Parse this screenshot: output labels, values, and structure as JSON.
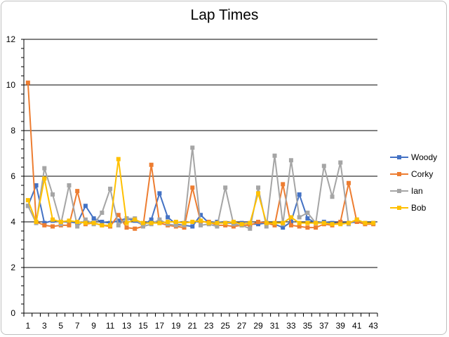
{
  "chart_data": {
    "type": "line",
    "title": "Lap Times",
    "xlabel": "",
    "ylabel": "",
    "ylim": [
      0,
      12
    ],
    "yticks": [
      0,
      2,
      4,
      6,
      8,
      10,
      12
    ],
    "xlim": [
      1,
      43
    ],
    "xtick_labels": [
      1,
      3,
      5,
      7,
      9,
      11,
      13,
      15,
      17,
      19,
      21,
      23,
      25,
      27,
      29,
      31,
      33,
      35,
      37,
      39,
      41,
      43
    ],
    "grid": "horizontal",
    "legend_position": "right",
    "x": [
      1,
      2,
      3,
      4,
      5,
      6,
      7,
      8,
      9,
      10,
      11,
      12,
      13,
      14,
      15,
      16,
      17,
      18,
      19,
      20,
      21,
      22,
      23,
      24,
      25,
      26,
      27,
      28,
      29,
      30,
      31,
      32,
      33,
      34,
      35,
      36,
      37,
      38,
      39,
      40,
      41,
      42,
      43
    ],
    "series": [
      {
        "name": "Woody",
        "color": "#4472c4",
        "marker": "square",
        "values": [
          4.7,
          5.6,
          3.95,
          4.05,
          4.0,
          4.0,
          3.95,
          4.7,
          4.15,
          4.0,
          3.95,
          4.05,
          4.15,
          4.05,
          3.85,
          4.1,
          5.25,
          4.2,
          3.9,
          3.85,
          3.8,
          4.3,
          3.95,
          4.0,
          3.95,
          3.95,
          3.95,
          3.9,
          3.9,
          3.95,
          3.9,
          3.75,
          4.0,
          5.2,
          4.15,
          3.95,
          4.0,
          3.95,
          3.95,
          3.95,
          4.0,
          3.95,
          3.95
        ]
      },
      {
        "name": "Corky",
        "color": "#ed7d31",
        "marker": "square",
        "values": [
          10.1,
          4.0,
          3.85,
          3.8,
          3.85,
          3.85,
          5.35,
          3.9,
          3.95,
          3.85,
          3.8,
          4.3,
          3.75,
          3.7,
          3.8,
          6.5,
          3.95,
          3.85,
          3.8,
          3.75,
          5.5,
          4.0,
          4.0,
          3.85,
          3.85,
          3.8,
          3.85,
          3.85,
          4.0,
          3.95,
          3.85,
          5.65,
          3.85,
          3.8,
          3.75,
          3.75,
          3.9,
          3.85,
          4.0,
          5.7,
          4.0,
          3.9,
          3.9
        ]
      },
      {
        "name": "Ian",
        "color": "#a5a5a5",
        "marker": "square",
        "values": [
          4.7,
          3.95,
          6.35,
          5.2,
          3.9,
          5.6,
          3.8,
          4.1,
          3.9,
          4.4,
          5.45,
          3.85,
          4.15,
          4.15,
          3.8,
          3.9,
          4.1,
          3.9,
          3.85,
          3.85,
          7.25,
          3.85,
          3.9,
          3.8,
          5.5,
          3.9,
          3.85,
          3.7,
          5.5,
          3.8,
          6.9,
          3.9,
          6.7,
          4.2,
          4.4,
          3.95,
          6.45,
          5.1,
          6.6,
          3.9,
          4.1,
          3.95,
          3.95
        ]
      },
      {
        "name": "Bob",
        "color": "#ffc000",
        "marker": "square",
        "values": [
          4.95,
          4.0,
          5.9,
          4.1,
          4.0,
          4.05,
          4.0,
          3.95,
          3.95,
          3.85,
          3.85,
          6.75,
          3.95,
          4.1,
          3.95,
          3.95,
          3.95,
          4.0,
          4.0,
          3.95,
          4.0,
          4.05,
          3.95,
          3.95,
          3.95,
          4.0,
          3.9,
          3.95,
          5.25,
          3.95,
          3.95,
          3.95,
          4.2,
          3.95,
          3.95,
          3.95,
          3.95,
          3.9,
          3.9,
          3.95,
          4.1,
          3.95,
          3.95
        ]
      }
    ]
  }
}
